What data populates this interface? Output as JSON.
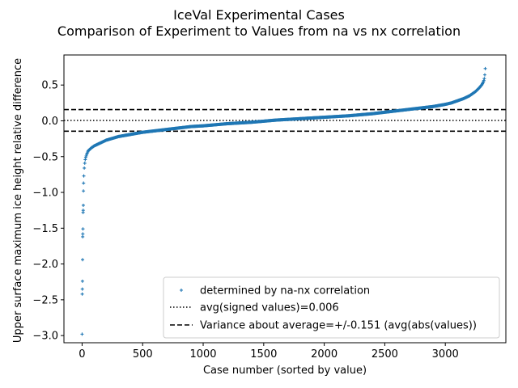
{
  "chart_data": {
    "type": "scatter",
    "title": "IceVal Experimental Cases",
    "subtitle": "Comparison of Experiment to Values from na vs nx correlation",
    "xlabel": "Case number (sorted by value)",
    "ylabel": "Upper surface maximum ice height relative difference",
    "xlim": [
      -150,
      3500
    ],
    "ylim": [
      -3.1,
      0.92
    ],
    "xticks": [
      0,
      500,
      1000,
      1500,
      2000,
      2500,
      3000
    ],
    "xtick_labels": [
      "0",
      "500",
      "1000",
      "1500",
      "2000",
      "2500",
      "3000"
    ],
    "yticks": [
      0.5,
      0.0,
      -0.5,
      -1.0,
      -1.5,
      -2.0,
      -2.5,
      -3.0
    ],
    "ytick_labels": [
      "0.5",
      "0.0",
      "−0.5",
      "−1.0",
      "−1.5",
      "−2.0",
      "−2.5",
      "−3.0"
    ],
    "grid": false,
    "legend_position": "lower-right",
    "n_cases": 3330,
    "series": [
      {
        "name": "determined by na-nx correlation",
        "kind": "scatter",
        "marker": "+",
        "color": "#1f77b4",
        "x": [
          0,
          1,
          2,
          3,
          4,
          5,
          6,
          7,
          8,
          9,
          10,
          11,
          12,
          15,
          20,
          25,
          30,
          40,
          50,
          75,
          100,
          150,
          200,
          300,
          400,
          500,
          600,
          700,
          800,
          900,
          1000,
          1200,
          1400,
          1600,
          1800,
          2000,
          2200,
          2400,
          2500,
          2600,
          2700,
          2800,
          2900,
          3000,
          3050,
          3100,
          3150,
          3200,
          3250,
          3280,
          3300,
          3310,
          3320,
          3325,
          3330
        ],
        "y": [
          -2.98,
          -2.42,
          -2.35,
          -2.24,
          -1.94,
          -1.62,
          -1.58,
          -1.51,
          -1.28,
          -1.25,
          -1.18,
          -0.98,
          -0.87,
          -0.72,
          -0.62,
          -0.55,
          -0.51,
          -0.46,
          -0.42,
          -0.38,
          -0.35,
          -0.31,
          -0.27,
          -0.22,
          -0.19,
          -0.16,
          -0.14,
          -0.12,
          -0.1,
          -0.08,
          -0.07,
          -0.04,
          -0.02,
          0.01,
          0.03,
          0.05,
          0.07,
          0.1,
          0.12,
          0.14,
          0.16,
          0.18,
          0.2,
          0.23,
          0.25,
          0.28,
          0.31,
          0.35,
          0.41,
          0.46,
          0.5,
          0.53,
          0.57,
          0.62,
          0.73
        ]
      },
      {
        "name": "avg(signed values)=0.006",
        "kind": "hline",
        "style": "dotted",
        "color": "#000000",
        "y": 0.006
      },
      {
        "name": "Variance about average=+/-0.151 (avg(abs(values))",
        "kind": "hline-pair",
        "style": "dashed",
        "color": "#000000",
        "y": [
          0.157,
          -0.145
        ]
      }
    ]
  }
}
